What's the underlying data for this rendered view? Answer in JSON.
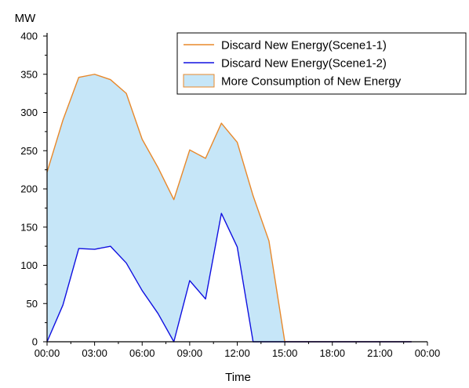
{
  "chart_data": {
    "type": "area",
    "title": "",
    "xlabel": "Time",
    "ylabel": "MW",
    "xlim": [
      0,
      24
    ],
    "ylim": [
      0,
      400
    ],
    "x_ticks": [
      "00:00",
      "03:00",
      "06:00",
      "09:00",
      "12:00",
      "15:00",
      "18:00",
      "21:00",
      "00:00"
    ],
    "y_ticks": [
      "0",
      "50",
      "100",
      "150",
      "200",
      "250",
      "300",
      "350",
      "400"
    ],
    "x": [
      0,
      1,
      2,
      3,
      4,
      5,
      6,
      7,
      8,
      9,
      10,
      11,
      12,
      13,
      14,
      15,
      16,
      17,
      18,
      19,
      20,
      21,
      22,
      23
    ],
    "series": [
      {
        "name": "Discard New Energy(Scene1-1)",
        "color": "#E8882A",
        "values": [
          222,
          290,
          346,
          350,
          343,
          325,
          265,
          228,
          186,
          251,
          240,
          286,
          261,
          191,
          132,
          0,
          0,
          0,
          0,
          0,
          0,
          0,
          0,
          0
        ]
      },
      {
        "name": "Discard New Energy(Scene1-2)",
        "color": "#1010E0",
        "values": [
          0,
          48,
          122,
          121,
          125,
          103,
          67,
          37,
          0,
          80,
          56,
          168,
          124,
          0,
          0,
          0,
          0,
          0,
          0,
          0,
          0,
          0,
          0,
          0
        ]
      }
    ],
    "fill": {
      "name": "More Consumption of New Energy",
      "color": "#C6E6F8",
      "between": [
        "Discard New Energy(Scene1-1)",
        "Discard New Energy(Scene1-2)"
      ]
    },
    "legend": "top-right",
    "grid": false
  }
}
